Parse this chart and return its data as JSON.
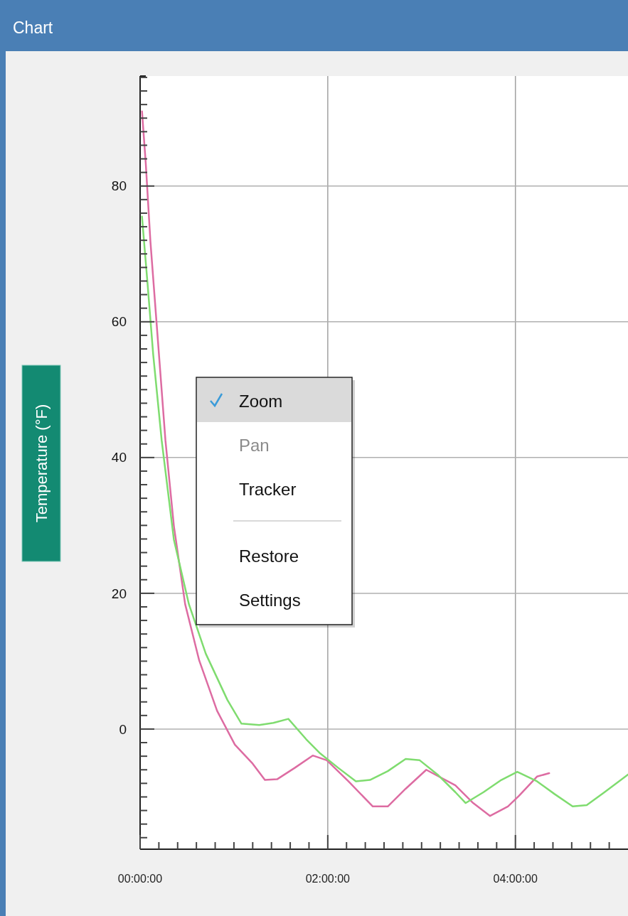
{
  "chart_data": {
    "type": "line",
    "title": "Chart",
    "ylabel": "Temperature (°F)",
    "x": [
      0.02,
      0.06,
      0.11,
      0.19,
      0.27,
      0.36,
      0.48,
      0.63,
      0.82,
      1.01,
      1.2,
      1.33,
      1.46,
      1.65,
      1.84,
      1.99,
      2.22,
      2.48,
      2.64,
      2.83,
      3.05,
      3.36,
      3.55,
      3.73,
      3.92,
      4.04,
      4.23,
      4.36
    ],
    "series": [
      {
        "color": "#dd6ca2",
        "values": [
          91.0,
          83.4,
          71.8,
          57.2,
          42.5,
          29.9,
          18.4,
          10.1,
          2.7,
          -2.3,
          -5.1,
          -7.5,
          -7.4,
          -5.7,
          -3.9,
          -4.6,
          -7.7,
          -11.4,
          -11.4,
          -8.8,
          -6.0,
          -8.3,
          -10.9,
          -12.8,
          -11.4,
          -9.8,
          -7.0,
          -6.5
        ]
      },
      {
        "color": "#7fdc6f",
        "x": [
          0.02,
          0.08,
          0.14,
          0.23,
          0.36,
          0.52,
          0.7,
          0.93,
          1.08,
          1.27,
          1.42,
          1.58,
          1.77,
          1.92,
          2.11,
          2.3,
          2.45,
          2.64,
          2.83,
          2.98,
          3.17,
          3.36,
          3.47,
          3.66,
          3.85,
          4.02,
          4.23,
          4.42,
          4.61,
          4.76,
          4.95,
          5.2
        ],
        "values": [
          75.5,
          65.5,
          55.1,
          42.5,
          27.9,
          18.4,
          11.1,
          4.3,
          0.8,
          0.6,
          0.9,
          1.5,
          -1.5,
          -3.6,
          -5.7,
          -7.7,
          -7.5,
          -6.2,
          -4.4,
          -4.6,
          -6.7,
          -9.3,
          -10.9,
          -9.3,
          -7.5,
          -6.3,
          -7.7,
          -9.6,
          -11.4,
          -11.2,
          -9.3,
          -6.7
        ]
      }
    ],
    "xlim": [
      0,
      5.2
    ],
    "ylim": [
      -17.7,
      96.2
    ],
    "xticks": [
      {
        "value": 0,
        "label": "00:00:00"
      },
      {
        "value": 0.2,
        "label": null
      },
      {
        "value": 0.4,
        "label": null
      },
      {
        "value": 0.6,
        "label": null
      },
      {
        "value": 0.8,
        "label": null
      },
      {
        "value": 1,
        "label": null
      },
      {
        "value": 1.2,
        "label": null
      },
      {
        "value": 1.4,
        "label": null
      },
      {
        "value": 1.6,
        "label": null
      },
      {
        "value": 1.8,
        "label": null
      },
      {
        "value": 2,
        "label": "02:00:00"
      },
      {
        "value": 2.2,
        "label": null
      },
      {
        "value": 2.4,
        "label": null
      },
      {
        "value": 2.6,
        "label": null
      },
      {
        "value": 2.8,
        "label": null
      },
      {
        "value": 3,
        "label": null
      },
      {
        "value": 3.2,
        "label": null
      },
      {
        "value": 3.4,
        "label": null
      },
      {
        "value": 3.6,
        "label": null
      },
      {
        "value": 3.8,
        "label": null
      },
      {
        "value": 4,
        "label": "04:00:00"
      },
      {
        "value": 4.2,
        "label": null
      },
      {
        "value": 4.4,
        "label": null
      },
      {
        "value": 4.6,
        "label": null
      },
      {
        "value": 4.8,
        "label": null
      },
      {
        "value": 5,
        "label": null
      }
    ],
    "yticks": [
      {
        "value": -16,
        "label": null
      },
      {
        "value": -14,
        "label": null
      },
      {
        "value": -12,
        "label": null
      },
      {
        "value": -10,
        "label": null
      },
      {
        "value": -8,
        "label": null
      },
      {
        "value": -6,
        "label": null
      },
      {
        "value": -4,
        "label": null
      },
      {
        "value": -2,
        "label": null
      },
      0,
      {
        "value": 2,
        "label": null
      },
      {
        "value": 4,
        "label": null
      },
      {
        "value": 6,
        "label": null
      },
      {
        "value": 8,
        "label": null
      },
      {
        "value": 10,
        "label": null
      },
      {
        "value": 12,
        "label": null
      },
      {
        "value": 14,
        "label": null
      },
      {
        "value": 16,
        "label": null
      },
      {
        "value": 18,
        "label": null
      },
      20,
      {
        "value": 22,
        "label": null
      },
      {
        "value": 24,
        "label": null
      },
      {
        "value": 26,
        "label": null
      },
      {
        "value": 28,
        "label": null
      },
      {
        "value": 30,
        "label": null
      },
      {
        "value": 32,
        "label": null
      },
      {
        "value": 34,
        "label": null
      },
      {
        "value": 36,
        "label": null
      },
      {
        "value": 38,
        "label": null
      },
      40,
      {
        "value": 42,
        "label": null
      },
      {
        "value": 44,
        "label": null
      },
      {
        "value": 46,
        "label": null
      },
      {
        "value": 48,
        "label": null
      },
      {
        "value": 50,
        "label": null
      },
      {
        "value": 52,
        "label": null
      },
      {
        "value": 54,
        "label": null
      },
      {
        "value": 56,
        "label": null
      },
      {
        "value": 58,
        "label": null
      },
      60,
      {
        "value": 62,
        "label": null
      },
      {
        "value": 64,
        "label": null
      },
      {
        "value": 66,
        "label": null
      },
      {
        "value": 68,
        "label": null
      },
      {
        "value": 70,
        "label": null
      },
      {
        "value": 72,
        "label": null
      },
      {
        "value": 74,
        "label": null
      },
      {
        "value": 76,
        "label": null
      },
      {
        "value": 78,
        "label": null
      },
      80,
      {
        "value": 82,
        "label": null
      },
      {
        "value": 84,
        "label": null
      },
      {
        "value": 86,
        "label": null
      },
      {
        "value": 88,
        "label": null
      },
      {
        "value": 90,
        "label": null
      },
      {
        "value": 92,
        "label": null
      },
      {
        "value": 94,
        "label": null
      },
      {
        "value": 96,
        "label": null
      }
    ],
    "grid": true,
    "marker": "none",
    "line_style": "solid",
    "annotations": [
      "Zoom",
      "Pan",
      "Tracker",
      "Restore",
      "Settings"
    ]
  }
}
